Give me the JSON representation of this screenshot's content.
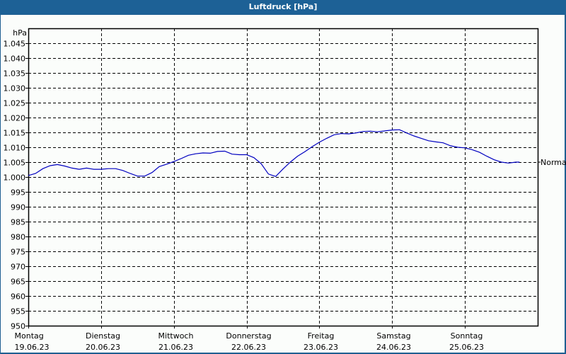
{
  "window": {
    "title": "Luftdruck [hPa]"
  },
  "chart_data": {
    "type": "line",
    "title": "Luftdruck [hPa]",
    "ylabel": "hPa",
    "xlabel": "",
    "ylim": [
      950,
      1050
    ],
    "grid": true,
    "yticks": [
      "950",
      "955",
      "960",
      "965",
      "970",
      "975",
      "980",
      "985",
      "990",
      "995",
      "1.000",
      "1.005",
      "1.010",
      "1.015",
      "1.020",
      "1.025",
      "1.030",
      "1.035",
      "1.040",
      "1.045"
    ],
    "xticks": [
      {
        "day": "Montag",
        "date": "19.06.23"
      },
      {
        "day": "Dienstag",
        "date": "20.06.23"
      },
      {
        "day": "Mittwoch",
        "date": "21.06.23"
      },
      {
        "day": "Donnerstag",
        "date": "22.06.23"
      },
      {
        "day": "Freitag",
        "date": "23.06.23"
      },
      {
        "day": "Samstag",
        "date": "24.06.23"
      },
      {
        "day": "Sonntag",
        "date": "25.06.23"
      }
    ],
    "reference_line": {
      "label": "Normal",
      "value": 1005
    },
    "series": [
      {
        "name": "Luftdruck",
        "color": "#0000c0",
        "x_days": [
          0,
          0.1,
          0.2,
          0.3,
          0.4,
          0.5,
          0.6,
          0.7,
          0.8,
          0.9,
          1.0,
          1.1,
          1.2,
          1.3,
          1.4,
          1.5,
          1.6,
          1.7,
          1.8,
          1.9,
          2.0,
          2.1,
          2.2,
          2.3,
          2.4,
          2.5,
          2.6,
          2.7,
          2.8,
          2.9,
          3.0,
          3.1,
          3.2,
          3.3,
          3.4,
          3.5,
          3.6,
          3.7,
          3.8,
          3.9,
          4.0,
          4.1,
          4.2,
          4.3,
          4.4,
          4.5,
          4.6,
          4.7,
          4.8,
          4.9,
          5.0,
          5.1,
          5.2,
          5.3,
          5.4,
          5.5,
          5.6,
          5.7,
          5.8,
          5.9,
          6.0,
          6.1,
          6.2,
          6.3,
          6.4,
          6.5,
          6.6,
          6.7,
          6.75
        ],
        "values": [
          1000.5,
          1001.2,
          1002.8,
          1003.8,
          1004.2,
          1003.7,
          1003.0,
          1002.6,
          1003.0,
          1002.6,
          1002.6,
          1002.8,
          1002.8,
          1002.2,
          1001.2,
          1000.3,
          1000.3,
          1001.5,
          1003.5,
          1004.3,
          1005.2,
          1006.2,
          1007.3,
          1007.8,
          1008.1,
          1008.0,
          1008.6,
          1008.7,
          1007.7,
          1007.5,
          1007.5,
          1006.5,
          1004.5,
          1001.0,
          1000.2,
          1002.7,
          1005.0,
          1007.0,
          1008.5,
          1010.2,
          1011.7,
          1013.0,
          1014.2,
          1014.6,
          1014.5,
          1014.8,
          1015.3,
          1015.4,
          1015.2,
          1015.5,
          1015.8,
          1015.9,
          1014.8,
          1013.8,
          1013.0,
          1012.2,
          1011.8,
          1011.5,
          1010.5,
          1010.0,
          1009.8,
          1009.2,
          1008.3,
          1007.0,
          1005.8,
          1005.0,
          1004.7,
          1005.0,
          1005.0
        ]
      }
    ]
  }
}
